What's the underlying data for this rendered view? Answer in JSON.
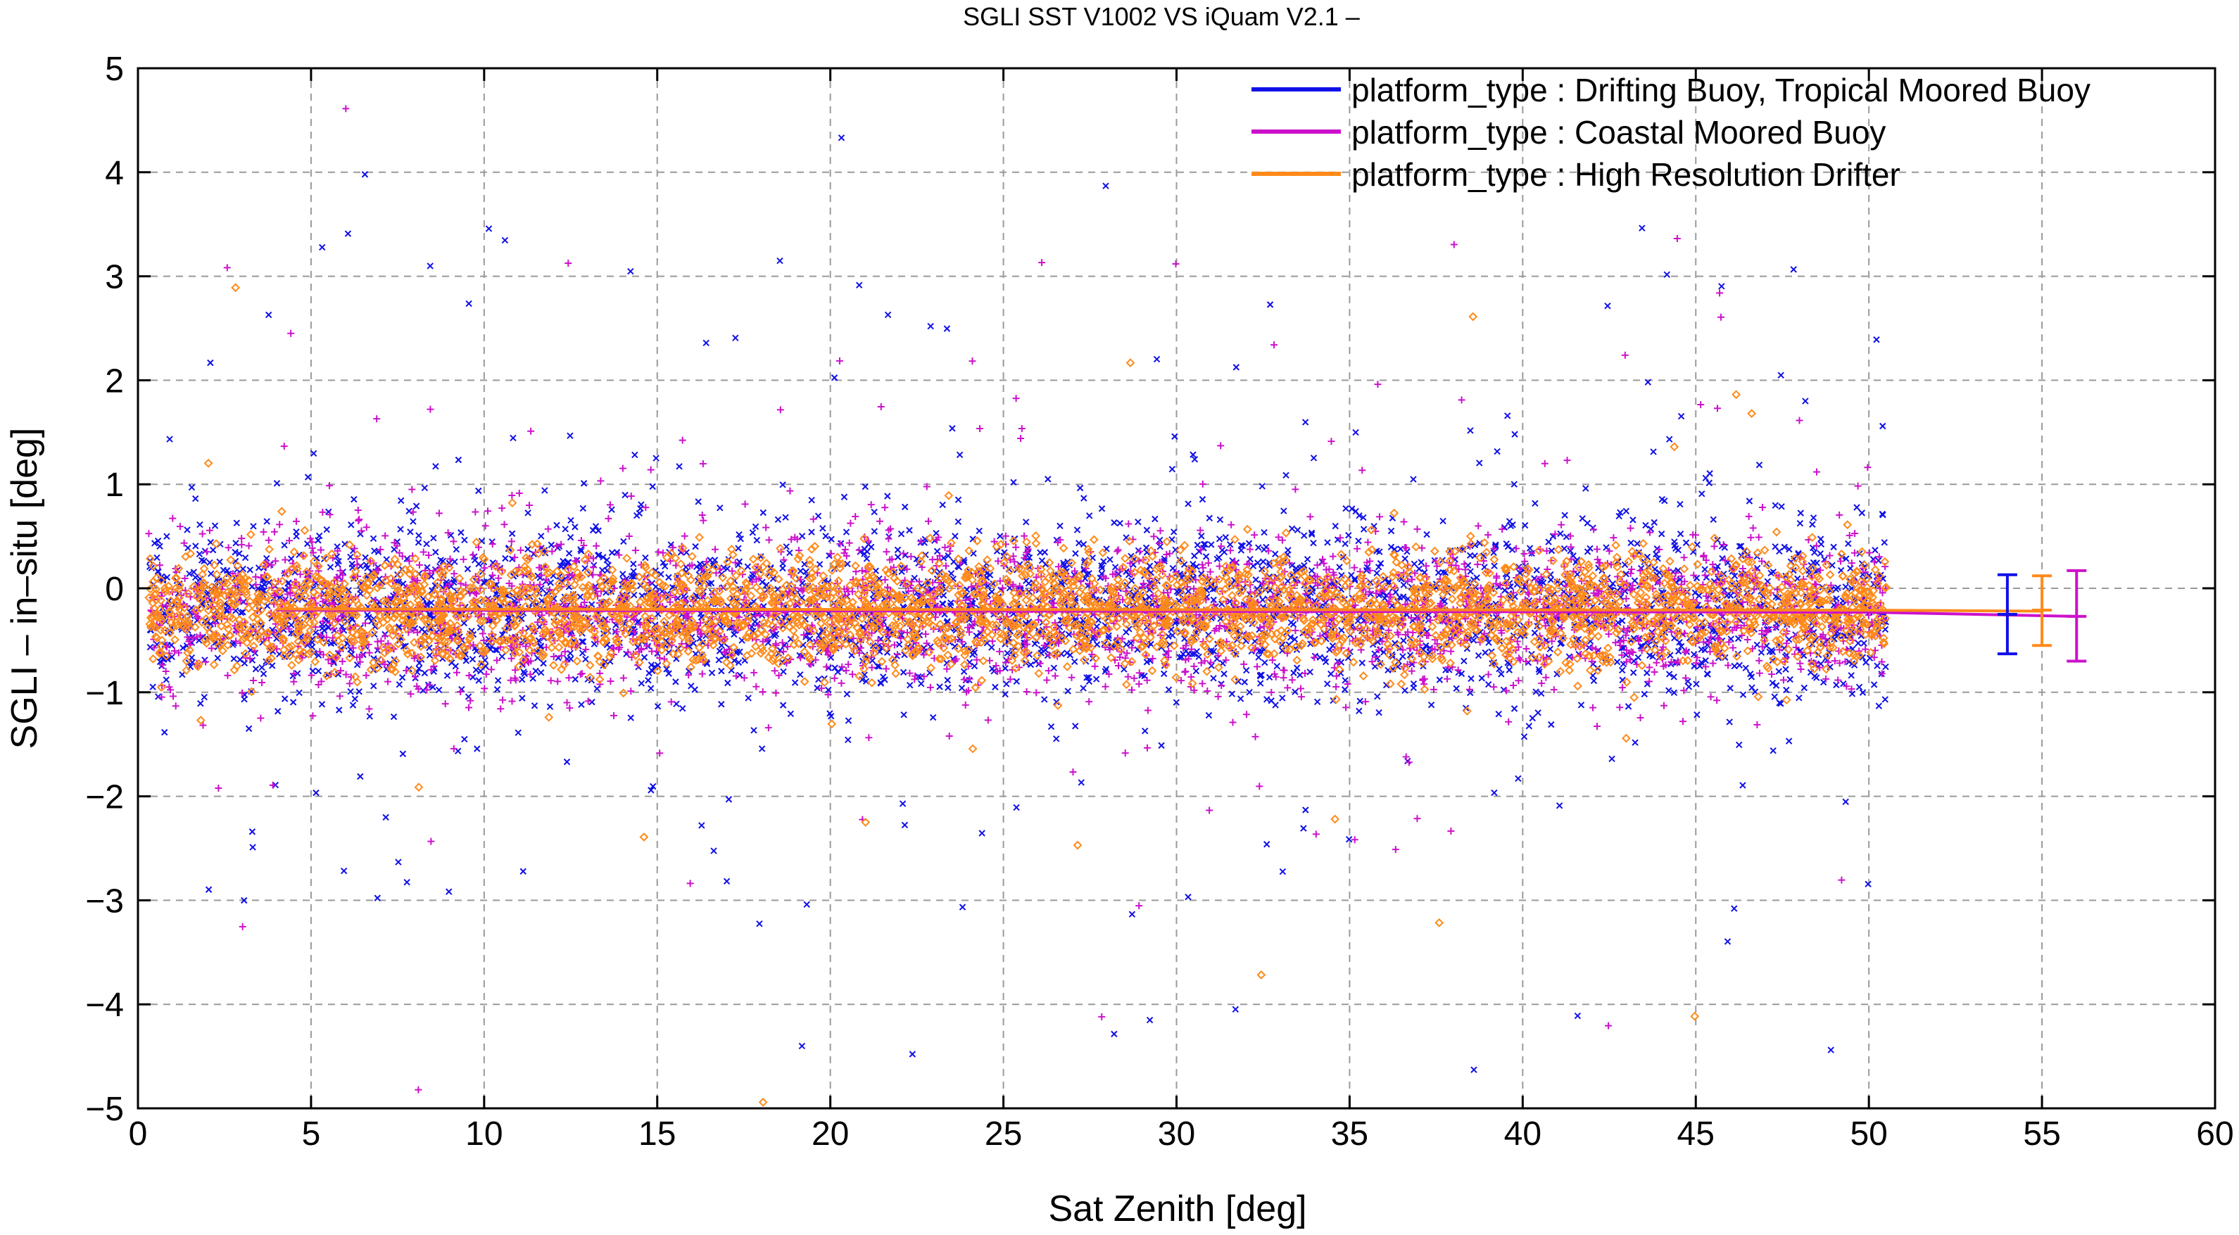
{
  "chart_data": {
    "type": "scatter",
    "title": "SGLI SST V1002 VS iQuam V2.1  –",
    "xlabel": "Sat Zenith [deg]",
    "ylabel": "SGLI – in–situ [deg]",
    "xlim": [
      0,
      60
    ],
    "ylim": [
      -5,
      5
    ],
    "xticks": [
      0,
      5,
      10,
      15,
      20,
      25,
      30,
      35,
      40,
      45,
      50,
      55,
      60
    ],
    "yticks": [
      -5,
      -4,
      -3,
      -2,
      -1,
      0,
      1,
      2,
      3,
      4,
      5
    ],
    "ytick_labels": [
      "−5",
      "−4",
      "−3",
      "−2",
      "−1",
      "0",
      "1",
      "2",
      "3",
      "4",
      "5"
    ],
    "grid": true,
    "legend_position": "top-right",
    "series": [
      {
        "name": "platform_type : Drifting Buoy, Tropical Moored Buoy",
        "color": "#1010e8",
        "marker": "x",
        "x_range": [
          0.3,
          50.5
        ],
        "mean_line": [
          [
            4,
            -0.2
          ],
          [
            50,
            -0.22
          ],
          [
            50.5,
            -0.25
          ]
        ],
        "core_band": [
          -0.85,
          0.45
        ],
        "summary": {
          "x": 54,
          "mean": -0.25,
          "lower": -0.63,
          "upper": 0.13
        }
      },
      {
        "name": "platform_type : Coastal Moored Buoy",
        "color": "#cc11cc",
        "marker": "+",
        "x_range": [
          0.3,
          50.5
        ],
        "mean_line": [
          [
            4,
            -0.21
          ],
          [
            50,
            -0.23
          ],
          [
            56,
            -0.27
          ]
        ],
        "core_band": [
          -0.8,
          0.4
        ],
        "summary": {
          "x": 56,
          "mean": -0.27,
          "lower": -0.7,
          "upper": 0.17
        }
      },
      {
        "name": "platform_type : High Resolution Drifter",
        "color": "#ff8a1a",
        "marker": "diamond",
        "x_range": [
          0.3,
          50.5
        ],
        "mean_line": [
          [
            4,
            -0.2
          ],
          [
            50,
            -0.21
          ],
          [
            55,
            -0.22
          ]
        ],
        "core_band": [
          -0.7,
          0.3
        ],
        "summary": {
          "x": 55,
          "mean": -0.21,
          "lower": -0.55,
          "upper": 0.12
        }
      }
    ]
  }
}
